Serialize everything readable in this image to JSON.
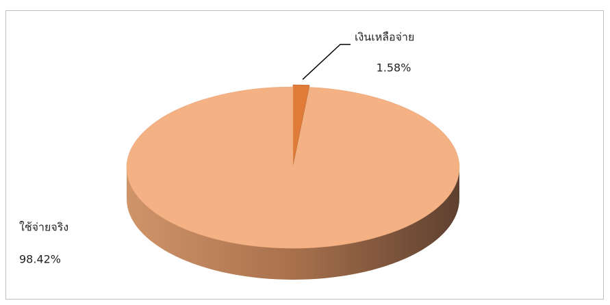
{
  "chart_data": {
    "type": "pie",
    "categories": [
      "เงินเหลือจ่าย",
      "ใช้จ่ายจริง"
    ],
    "values": [
      1.58,
      98.42
    ],
    "value_labels": [
      "1.58%",
      "98.42%"
    ],
    "colors": [
      "#e07b39",
      "#f4b183"
    ]
  }
}
